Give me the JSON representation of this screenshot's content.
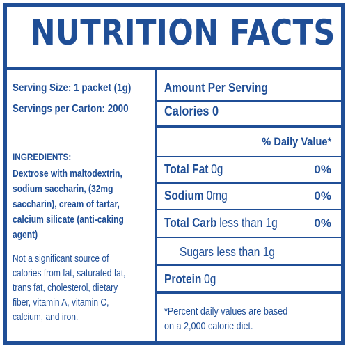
{
  "title": "NUTRITION FACTS",
  "serving_size": "Serving Size: 1 packet (1g)",
  "servings_per_carton": "Servings per Carton: 2000",
  "ingredients_heading": "INGREDIENTS:",
  "ingredients_lines": [
    "Dextrose with maltodextrin,",
    "sodium saccharin, (32mg",
    "saccharin), cream of tartar,",
    "calcium silicate (anti-caking",
    "agent)"
  ],
  "note_lines": [
    "Not a significant source of",
    "calories from fat, saturated fat,",
    "trans fat, cholesterol, dietary",
    "fiber, vitamin A, vitamin C,",
    "calcium, and iron."
  ],
  "amount_per_serving": "Amount Per Serving",
  "calories_label": "Calories",
  "calories_value": "0",
  "daily_value_header": "% Daily Value*",
  "nutrients": [
    {
      "name": "Total Fat",
      "amount": "0g",
      "dv": "0%"
    },
    {
      "name": "Sodium",
      "amount": "0mg",
      "dv": "0%"
    },
    {
      "name": "Total Carb",
      "amount": "less than 1g",
      "dv": "0%"
    }
  ],
  "sugars": "Sugars less than 1g",
  "protein_label": "Protein",
  "protein_amount": "0g",
  "footnote_lines": [
    "*Percent daily values are based",
    "on a 2,000 calorie diet."
  ],
  "colors": {
    "brand": "#1f4e96",
    "background": "#ffffff"
  }
}
